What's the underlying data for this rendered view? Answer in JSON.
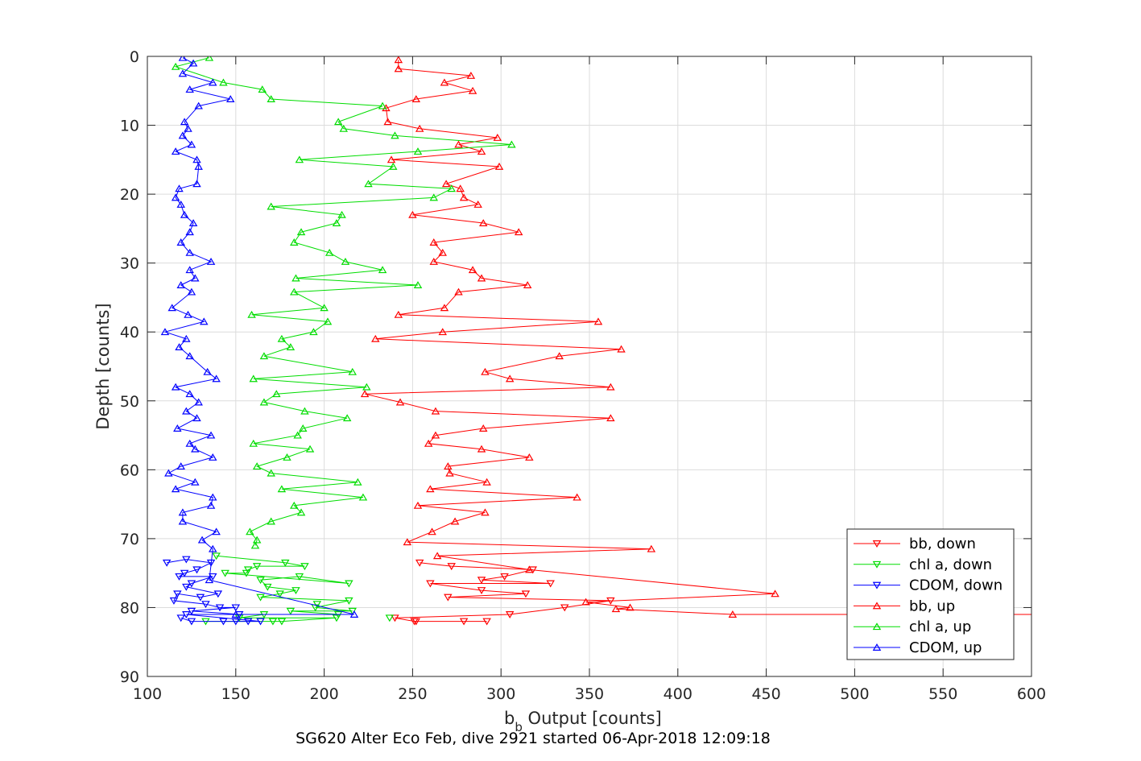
{
  "chart_data": {
    "type": "line",
    "caption": "SG620 Alter Eco Feb, dive 2921 started 06-Apr-2018 12:09:18",
    "xlabel_main": "b",
    "xlabel_sub": "b",
    "xlabel_rest": " Output [counts]",
    "ylabel": "Depth [counts]",
    "xlim": [
      100,
      600
    ],
    "ylim": [
      0,
      90
    ],
    "y_reversed": true,
    "grid": true,
    "legend_position": "bottom-right",
    "xticks": [
      "100",
      "150",
      "200",
      "250",
      "300",
      "350",
      "400",
      "450",
      "500",
      "550",
      "600"
    ],
    "yticks": [
      "0",
      "10",
      "20",
      "30",
      "40",
      "50",
      "60",
      "70",
      "80",
      "90"
    ],
    "series": [
      {
        "name": "bb, down",
        "color": "#ff0000",
        "marker": "triangle-down",
        "x": [
          252,
          292,
          279,
          251,
          240,
          305,
          336,
          362,
          270,
          314,
          289,
          260,
          328,
          289,
          302,
          318,
          272,
          254
        ],
        "y": [
          82.0,
          82.0,
          82.0,
          82.0,
          81.5,
          81.0,
          80.0,
          79.0,
          78.5,
          78.0,
          77.5,
          76.5,
          76.5,
          76.0,
          75.5,
          74.5,
          74.0,
          73.5
        ]
      },
      {
        "name": "chl a, down",
        "color": "#00dd00",
        "marker": "triangle-down",
        "x": [
          133,
          171,
          176,
          207,
          152,
          166,
          208,
          181,
          216,
          195,
          214,
          164,
          175,
          184,
          168,
          164,
          186,
          214,
          144,
          156,
          157,
          162,
          189,
          178,
          139
        ],
        "y": [
          82.0,
          82.0,
          82.0,
          81.5,
          81.5,
          81.0,
          81.0,
          80.5,
          80.5,
          80.0,
          79.0,
          78.5,
          78.0,
          77.5,
          77.0,
          76.0,
          75.5,
          76.5,
          75.0,
          75.0,
          74.5,
          74.0,
          74.0,
          73.5,
          72.5
        ],
        "extra": [
          {
            "x": 237,
            "y": 81.5
          },
          {
            "x": 196,
            "y": 79.5
          }
        ]
      },
      {
        "name": "CDOM, down",
        "color": "#0000ff",
        "marker": "triangle-down",
        "x": [
          119,
          125,
          143,
          150,
          157,
          164,
          122,
          152,
          125,
          150,
          141,
          133,
          115,
          117,
          130,
          140,
          122,
          125,
          137,
          118,
          121,
          128,
          136,
          122,
          111
        ],
        "y": [
          81.5,
          82.0,
          82.0,
          82.0,
          82.0,
          82.0,
          81.0,
          81.0,
          80.5,
          80.0,
          80.0,
          79.5,
          79.0,
          78.0,
          78.5,
          78.0,
          77.0,
          76.5,
          75.5,
          75.5,
          75.0,
          74.5,
          73.5,
          73.0,
          73.5
        ]
      },
      {
        "name": "bb, up",
        "color": "#ff0000",
        "marker": "triangle-up",
        "x": [
          242,
          242,
          283,
          268,
          284,
          252,
          235,
          236,
          254,
          298,
          276,
          289,
          238,
          299,
          269,
          277,
          279,
          287,
          250,
          290,
          310,
          262,
          267,
          262,
          284,
          289,
          315,
          276,
          268,
          242,
          355,
          267,
          229,
          368,
          333,
          291,
          305,
          362,
          223,
          243,
          263,
          362,
          290,
          263,
          259,
          289,
          316,
          270,
          271,
          292,
          260,
          343,
          253,
          291,
          274,
          261,
          247,
          385,
          264,
          316,
          455,
          348,
          373,
          365,
          431,
          1000
        ],
        "y": [
          0.5,
          1.8,
          2.8,
          3.8,
          5.0,
          6.2,
          7.5,
          9.5,
          10.5,
          11.8,
          12.8,
          13.8,
          15.0,
          16.0,
          18.5,
          19.2,
          20.5,
          21.5,
          23.0,
          24.2,
          25.5,
          27.0,
          28.5,
          29.8,
          31.0,
          32.2,
          33.2,
          34.2,
          36.5,
          37.5,
          38.5,
          40.0,
          41.0,
          42.5,
          43.5,
          45.8,
          46.8,
          48.0,
          49.0,
          50.2,
          51.5,
          52.5,
          54.0,
          55.0,
          56.2,
          57.0,
          58.2,
          59.5,
          60.5,
          61.8,
          62.8,
          64.0,
          65.2,
          66.2,
          67.5,
          69.0,
          70.5,
          71.5,
          72.5,
          74.5,
          78.0,
          79.2,
          80.0,
          80.2,
          81.0,
          81.0
        ]
      },
      {
        "name": "chl a, up",
        "color": "#00dd00",
        "marker": "triangle-up",
        "x": [
          135,
          116,
          143,
          165,
          170,
          233,
          208,
          211,
          240,
          306,
          253,
          186,
          239,
          225,
          272,
          262,
          170,
          210,
          207,
          187,
          183,
          203,
          212,
          233,
          184,
          253,
          183,
          200,
          159,
          202,
          194,
          176,
          181,
          166,
          216,
          160,
          224,
          173,
          166,
          189,
          213,
          188,
          185,
          160,
          192,
          179,
          162,
          170,
          219,
          176,
          222,
          183,
          187,
          170,
          158,
          162,
          161
        ],
        "y": [
          0.2,
          1.5,
          3.8,
          4.8,
          6.2,
          7.2,
          9.5,
          10.5,
          11.5,
          12.8,
          13.8,
          15.0,
          16.0,
          18.5,
          19.2,
          20.5,
          21.8,
          23.0,
          24.2,
          25.5,
          27.0,
          28.5,
          29.8,
          31.0,
          32.2,
          33.2,
          34.2,
          36.5,
          37.5,
          38.5,
          40.0,
          41.0,
          42.2,
          43.5,
          45.8,
          46.8,
          48.0,
          49.0,
          50.2,
          51.5,
          52.5,
          54.0,
          55.0,
          56.2,
          57.0,
          58.2,
          59.5,
          60.5,
          61.8,
          62.8,
          64.0,
          65.2,
          66.2,
          67.5,
          69.0,
          70.2,
          71.0
        ]
      },
      {
        "name": "CDOM, up",
        "color": "#0000ff",
        "marker": "triangle-up",
        "x": [
          120,
          126,
          120,
          137,
          124,
          147,
          129,
          121,
          123,
          120,
          125,
          116,
          128,
          129,
          128,
          118,
          116,
          119,
          121,
          126,
          124,
          119,
          124,
          136,
          124,
          127,
          119,
          125,
          114,
          123,
          132,
          110,
          122,
          118,
          124,
          134,
          139,
          116,
          124,
          129,
          122,
          128,
          117,
          136,
          124,
          127,
          137,
          119,
          112,
          127,
          116,
          137,
          136,
          120,
          120,
          139,
          131,
          137,
          135,
          217,
          150
        ],
        "y": [
          0.2,
          1.0,
          2.5,
          3.8,
          4.8,
          6.2,
          7.2,
          9.5,
          10.5,
          11.5,
          12.8,
          13.8,
          15.0,
          16.0,
          18.5,
          19.2,
          20.5,
          21.5,
          23.0,
          24.2,
          25.5,
          27.0,
          28.5,
          29.8,
          31.0,
          32.2,
          33.2,
          34.2,
          36.5,
          37.5,
          38.5,
          40.0,
          41.0,
          42.2,
          43.5,
          45.8,
          46.8,
          48.0,
          49.0,
          50.2,
          51.5,
          52.5,
          54.0,
          55.0,
          56.2,
          57.0,
          58.2,
          59.5,
          60.5,
          61.8,
          62.8,
          64.0,
          65.2,
          66.2,
          67.5,
          69.0,
          70.2,
          71.5,
          76.0,
          81.0,
          81.0
        ]
      }
    ]
  }
}
